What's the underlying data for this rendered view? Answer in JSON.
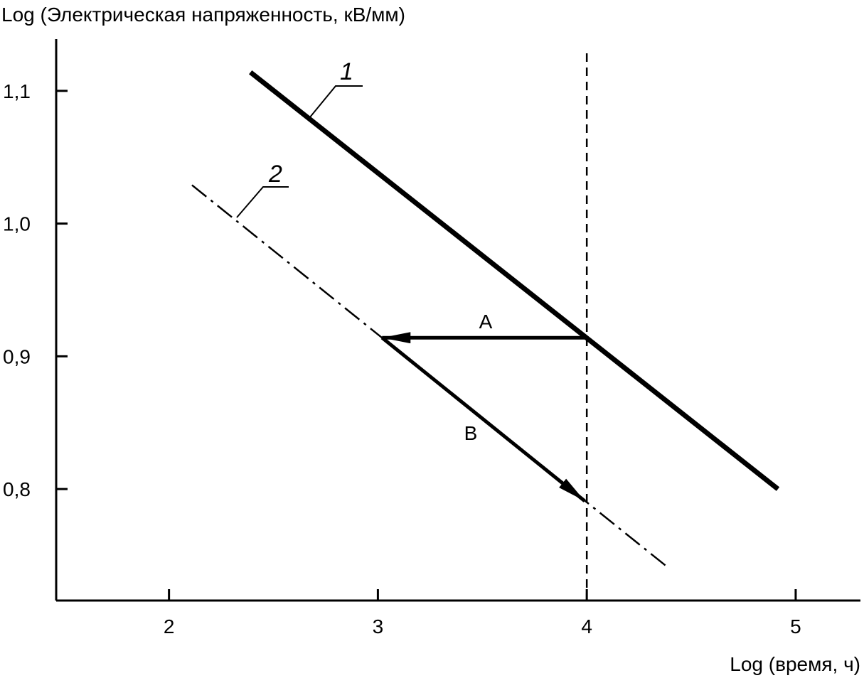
{
  "chart_data": {
    "type": "line",
    "title": "",
    "ylabel": "Log (Электрическая напряженность, кВ/мм)",
    "xlabel": "Log (время, ч)",
    "xlim": [
      1.46,
      5.31
    ],
    "ylim": [
      0.716,
      1.139
    ],
    "x_ticks": [
      2,
      3,
      4,
      5
    ],
    "x_tick_labels": [
      "2",
      "3",
      "4",
      "5"
    ],
    "y_ticks": [
      1.1,
      1.0,
      0.9,
      0.8
    ],
    "y_tick_labels": [
      "1,1",
      "1,0",
      "0,9",
      "0,8"
    ],
    "grid": false,
    "series": [
      {
        "name": "1",
        "style": "solid-thick",
        "x": [
          2.39,
          4.915
        ],
        "y": [
          1.114,
          0.8
        ]
      },
      {
        "name": "2",
        "style": "dash-dot",
        "x": [
          2.11,
          4.38
        ],
        "y": [
          1.029,
          0.742
        ]
      }
    ],
    "reference_line": {
      "x": 4,
      "style": "dashed"
    },
    "annotations": [
      {
        "label": "A",
        "from": [
          4.0,
          0.914
        ],
        "to": [
          3.02,
          0.914
        ]
      },
      {
        "label": "B",
        "from": [
          3.02,
          0.914
        ],
        "to": [
          3.99,
          0.791
        ]
      }
    ]
  }
}
